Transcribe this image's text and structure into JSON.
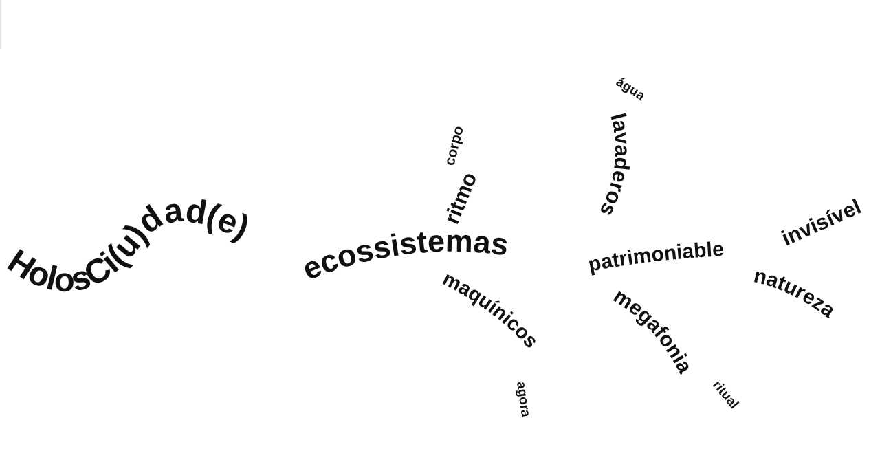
{
  "title_curve": {
    "text": "HolosCi(u)dad(e)"
  },
  "center_word": {
    "text": "ecossistemas"
  },
  "branches": {
    "ritmo": "ritmo",
    "corpo": "corpo",
    "maquinicos": "maquínicos",
    "agora": "agora",
    "lavaderos": "lavaderos",
    "agua": "água",
    "patrimoniable": "patrimoniable",
    "megafonia": "megafonia",
    "ritual": "ritual",
    "invisivel": "invisível",
    "natureza": "natureza"
  },
  "colors": {
    "text": "#111111",
    "background": "#ffffff"
  }
}
